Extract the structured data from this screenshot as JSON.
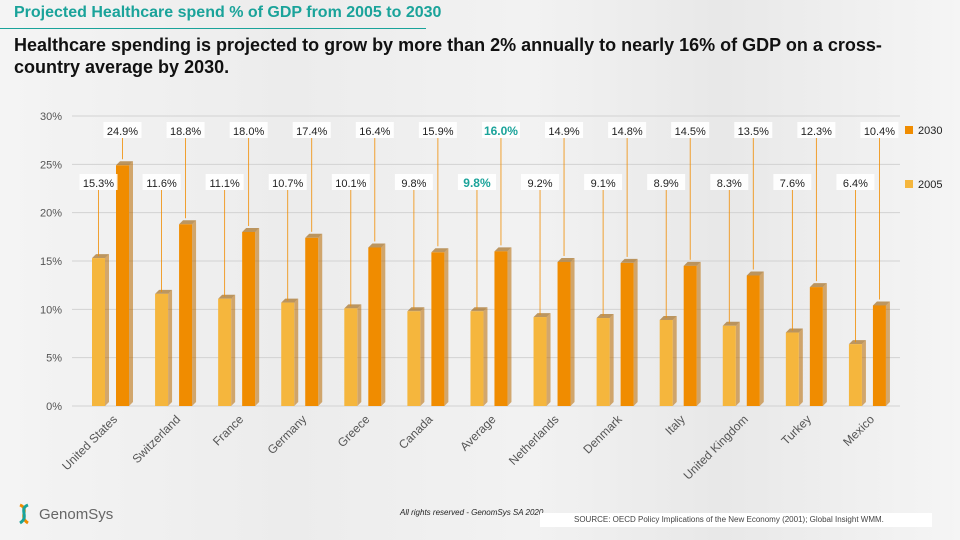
{
  "header": {
    "title": "Projected Healthcare spend % of GDP from 2005 to 2030",
    "subtitle": "Healthcare spending is projected to grow by more than 2% annually to nearly 16% of GDP on a cross-country average by 2030."
  },
  "footer": {
    "rights": "All rights reserved - GenomSys SA 2020",
    "source": "SOURCE: OECD Policy Implications of the New Economy (2001); Global Insight WMM.",
    "logo_text": "GenomSys"
  },
  "colors": {
    "accent": "#1aa39a",
    "bar_2005": "#f5b63d",
    "bar_2030": "#f08c00"
  },
  "chart_data": {
    "type": "bar",
    "categories": [
      "United States",
      "Switzerland",
      "France",
      "Germany",
      "Greece",
      "Canada",
      "Average",
      "Netherlands",
      "Denmark",
      "Italy",
      "United Kingdom",
      "Turkey",
      "Mexico"
    ],
    "series": [
      {
        "name": "2005",
        "values": [
          15.3,
          11.6,
          11.1,
          10.7,
          10.1,
          9.8,
          9.8,
          9.2,
          9.1,
          8.9,
          8.3,
          7.6,
          6.4
        ]
      },
      {
        "name": "2030",
        "values": [
          24.9,
          18.8,
          18.0,
          17.4,
          16.4,
          15.9,
          16.0,
          14.9,
          14.8,
          14.5,
          13.5,
          12.3,
          10.4
        ]
      }
    ],
    "y_ticks": [
      "0%",
      "5%",
      "10%",
      "15%",
      "20%",
      "25%",
      "30%"
    ],
    "ylim": [
      0,
      30
    ],
    "value_suffix": "%",
    "highlight_category": "Average",
    "highlight_color": "#1aa39a",
    "grid": true,
    "legend_position": "right"
  }
}
